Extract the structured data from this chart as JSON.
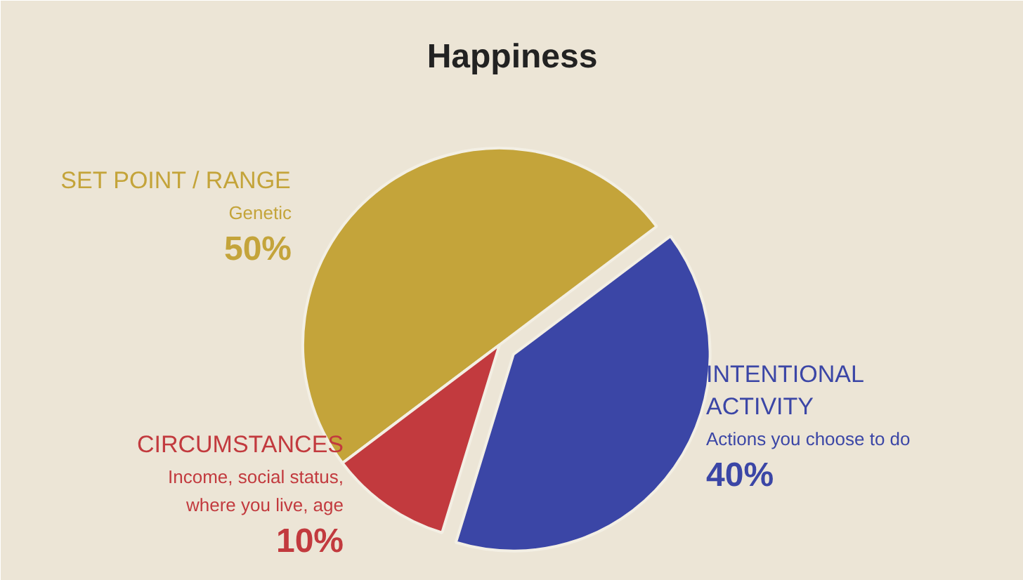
{
  "chart_data": {
    "type": "pie",
    "title": "Happiness",
    "categories": [
      "SET POINT / RANGE",
      "INTENTIONAL ACTIVITY",
      "CIRCUMSTANCES"
    ],
    "values": [
      50,
      40,
      10
    ],
    "colors": [
      "#c4a43a",
      "#3b46a6",
      "#c23a3e"
    ],
    "value_labels": [
      "50%",
      "40%",
      "10%"
    ],
    "annotations": [
      "Genetic",
      "Actions you choose to do",
      "Income, social status,",
      "where you live, age"
    ]
  }
}
